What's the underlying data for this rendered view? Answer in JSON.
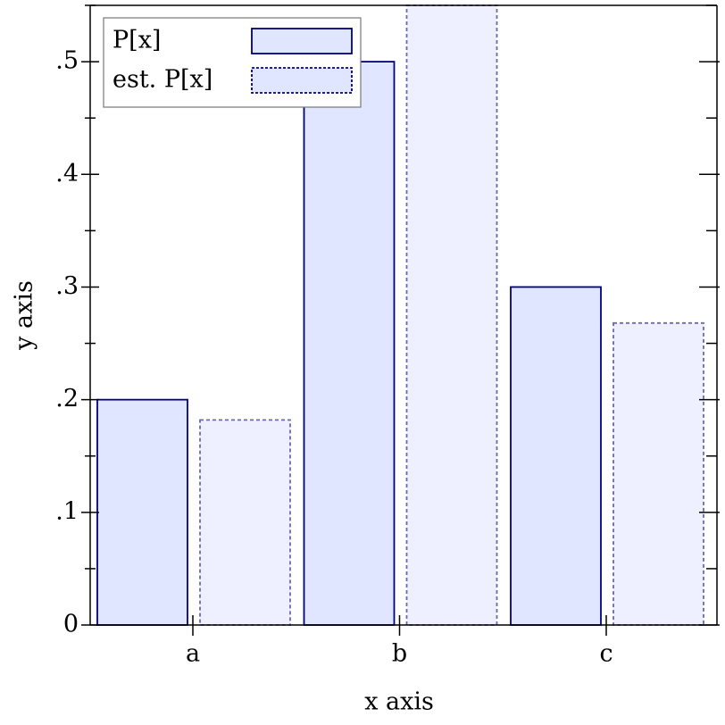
{
  "chart_data": {
    "type": "bar",
    "xlabel": "x axis",
    "ylabel": "y axis",
    "categories": [
      "a",
      "b",
      "c"
    ],
    "series": [
      {
        "name": "P[x]",
        "color": "#e0e6ff",
        "values": [
          0.2,
          0.5,
          0.3
        ]
      },
      {
        "name": "est. P[x]",
        "color": "#eef0ff",
        "values": [
          0.182,
          0.55,
          0.268
        ]
      }
    ],
    "ylim": [
      0,
      0.55
    ],
    "yticks": [
      0,
      {
        "value": 0.1,
        "label": ".1"
      },
      {
        "value": 0.2,
        "label": ".2"
      },
      {
        "value": 0.3,
        "label": ".3"
      },
      {
        "value": 0.4,
        "label": ".4"
      },
      {
        "value": 0.5,
        "label": ".5"
      }
    ],
    "yminor_ticks": [
      0.05,
      0.15,
      0.25,
      0.35,
      0.45,
      0.55
    ],
    "legend": "top-left"
  }
}
